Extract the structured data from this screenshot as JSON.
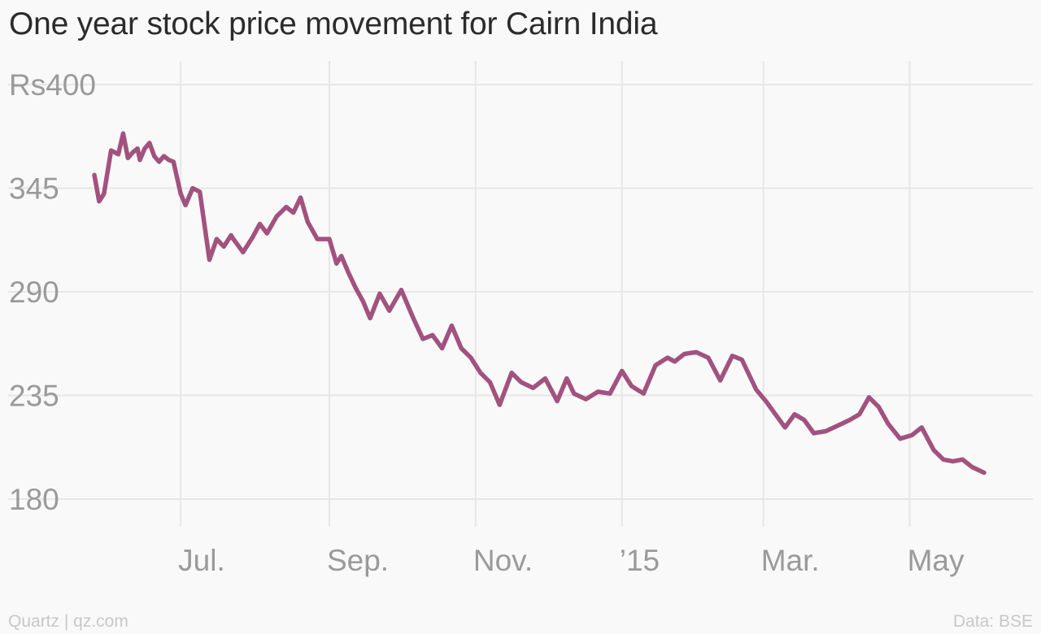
{
  "chart_data": {
    "type": "line",
    "title": "One year stock price movement for Cairn India",
    "xlabel": "",
    "ylabel": "",
    "y_ticks": [
      "Rs400",
      "345",
      "290",
      "235",
      "180"
    ],
    "y_tick_values": [
      400,
      345,
      290,
      235,
      180
    ],
    "ylim": [
      180,
      400
    ],
    "x_ticks": [
      "Jul.",
      "Sep.",
      "Nov.",
      "’15",
      "Mar.",
      "May"
    ],
    "x_tick_dates": [
      "2014-07-01",
      "2014-09-01",
      "2014-11-01",
      "2015-01-01",
      "2015-03-01",
      "2015-05-01"
    ],
    "xlim": [
      "2014-05-24",
      "2015-06-15"
    ],
    "grid": true,
    "line_color": "#a2527f",
    "series": [
      {
        "dates": [
          "2014-05-26",
          "2014-05-28",
          "2014-05-30",
          "2014-06-02",
          "2014-06-05",
          "2014-06-07",
          "2014-06-09",
          "2014-06-11",
          "2014-06-13",
          "2014-06-14",
          "2014-06-16",
          "2014-06-18",
          "2014-06-20",
          "2014-06-22",
          "2014-06-24",
          "2014-06-26",
          "2014-06-28",
          "2014-07-01",
          "2014-07-03",
          "2014-07-06",
          "2014-07-09",
          "2014-07-13",
          "2014-07-16",
          "2014-07-19",
          "2014-07-22",
          "2014-07-23",
          "2014-07-27",
          "2014-07-31",
          "2014-08-03",
          "2014-08-06",
          "2014-08-10",
          "2014-08-14",
          "2014-08-17",
          "2014-08-20",
          "2014-08-23",
          "2014-08-27",
          "2014-09-01",
          "2014-09-04",
          "2014-09-06",
          "2014-09-09",
          "2014-09-12",
          "2014-09-15",
          "2014-09-18",
          "2014-09-22",
          "2014-09-26",
          "2014-10-01",
          "2014-10-06",
          "2014-10-10",
          "2014-10-14",
          "2014-10-18",
          "2014-10-22",
          "2014-10-26",
          "2014-10-30",
          "2014-11-03",
          "2014-11-07",
          "2014-11-11",
          "2014-11-16",
          "2014-11-20",
          "2014-11-25",
          "2014-11-30",
          "2014-12-05",
          "2014-12-09",
          "2014-12-12",
          "2014-12-17",
          "2014-12-22",
          "2014-12-27",
          "2015-01-01",
          "2015-01-05",
          "2015-01-10",
          "2015-01-15",
          "2015-01-20",
          "2015-01-23",
          "2015-01-27",
          "2015-02-01",
          "2015-02-06",
          "2015-02-11",
          "2015-02-16",
          "2015-02-20",
          "2015-02-26",
          "2015-03-02",
          "2015-03-06",
          "2015-03-10",
          "2015-03-14",
          "2015-03-18",
          "2015-03-22",
          "2015-03-27",
          "2015-04-01",
          "2015-04-06",
          "2015-04-10",
          "2015-04-14",
          "2015-04-18",
          "2015-04-22",
          "2015-04-27",
          "2015-05-02",
          "2015-05-06",
          "2015-05-11",
          "2015-05-15",
          "2015-05-19",
          "2015-05-23",
          "2015-05-27",
          "2015-06-01"
        ],
        "values": [
          352,
          338,
          342,
          365,
          363,
          374,
          361,
          364,
          366,
          360,
          366,
          369,
          362,
          359,
          362,
          360,
          359,
          342,
          336,
          345,
          343,
          307,
          318,
          314,
          320,
          318,
          311,
          319,
          326,
          321,
          330,
          335,
          332,
          340,
          327,
          318,
          318,
          305,
          309,
          300,
          292,
          285,
          276,
          289,
          280,
          291,
          276,
          265,
          267,
          260,
          272,
          260,
          255,
          247,
          242,
          230,
          247,
          242,
          239,
          244,
          232,
          244,
          236,
          233,
          237,
          236,
          248,
          240,
          236,
          251,
          255,
          253,
          257,
          258,
          255,
          243,
          256,
          254,
          238,
          232,
          225,
          218,
          225,
          222,
          215,
          216,
          219,
          222,
          225,
          234,
          229,
          220,
          212,
          214,
          218,
          206,
          201,
          200,
          201,
          197,
          194
        ]
      }
    ],
    "source_left": "Quartz | qz.com",
    "source_right": "Data: BSE"
  }
}
